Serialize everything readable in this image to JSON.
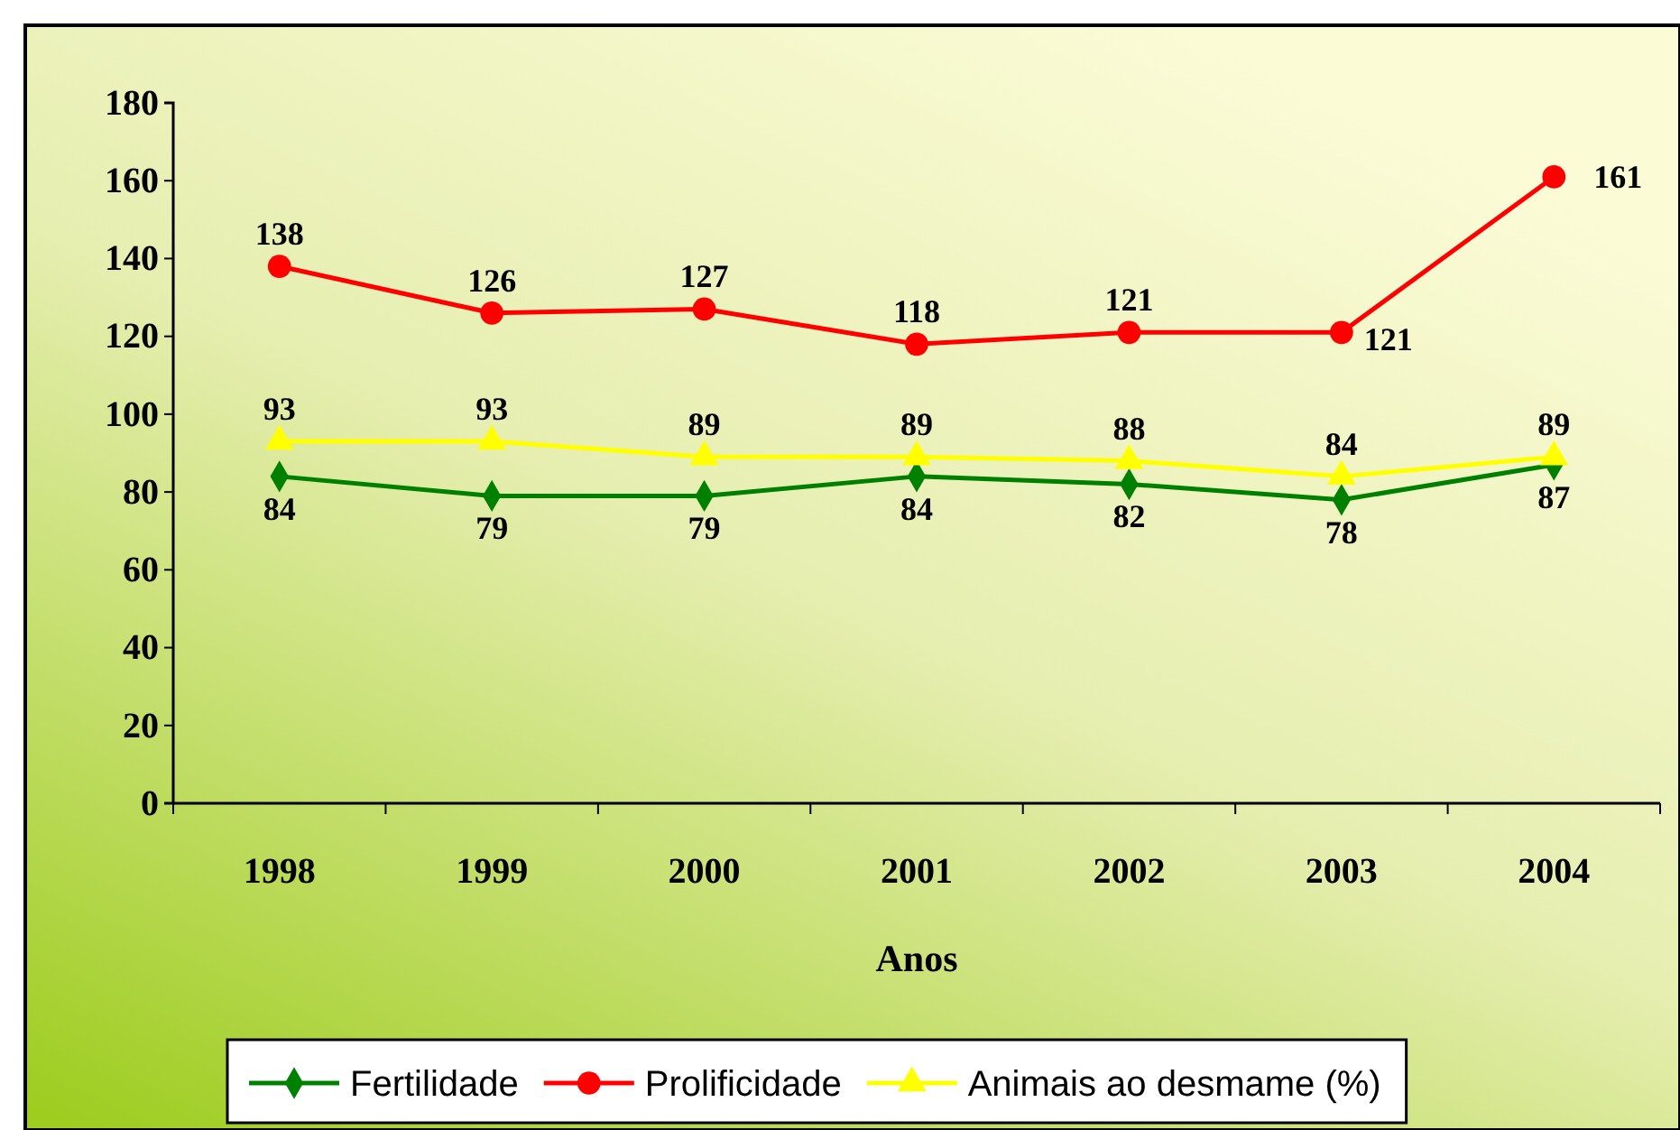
{
  "chart_data": {
    "type": "line",
    "xlabel": "Anos",
    "categories": [
      "1998",
      "1999",
      "2000",
      "2001",
      "2002",
      "2003",
      "2004"
    ],
    "ylim": [
      0,
      180
    ],
    "yticks": [
      0,
      20,
      40,
      60,
      80,
      100,
      120,
      140,
      160,
      180
    ],
    "grid": false,
    "legend": "bottom",
    "data_labels": true,
    "line_style": "solid",
    "series": [
      {
        "name": "Fertilidade",
        "color": "#008000",
        "marker": "diamond",
        "values": [
          84,
          79,
          79,
          84,
          82,
          78,
          87
        ]
      },
      {
        "name": "Prolificidade",
        "color": "#ff0000",
        "marker": "circle",
        "values": [
          138,
          126,
          127,
          118,
          121,
          121,
          161
        ]
      },
      {
        "name": "Animais ao desmame (%)",
        "color": "#ffff00",
        "marker": "triangle",
        "values": [
          93,
          93,
          89,
          89,
          88,
          84,
          89
        ]
      }
    ]
  }
}
